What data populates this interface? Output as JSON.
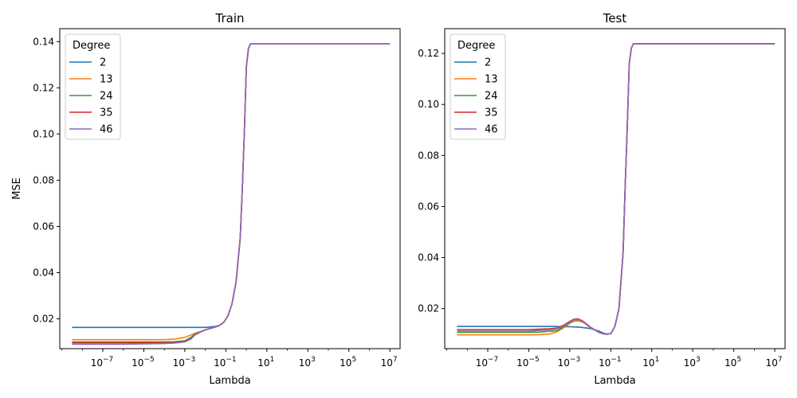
{
  "chart_data": [
    {
      "type": "line",
      "title": "Train",
      "xlabel": "Lambda",
      "ylabel": "MSE",
      "xscale": "log",
      "xlim_log10": [
        -9.1,
        7.5
      ],
      "ylim": [
        0.0071,
        0.1456
      ],
      "xtick_exponents": [
        -7,
        -5,
        -3,
        -1,
        1,
        3,
        5,
        7
      ],
      "yticks": [
        "0.02",
        "0.04",
        "0.06",
        "0.08",
        "0.10",
        "0.12",
        "0.14"
      ],
      "grid": false,
      "legend": {
        "title": "Degree",
        "placement": "top-left"
      },
      "series": [
        {
          "name": "2",
          "color": "#1f77b4",
          "points": [
            [
              -8.5,
              0.0163
            ],
            [
              -4,
              0.0163
            ],
            [
              -2.5,
              0.0163
            ],
            [
              -2,
              0.0163
            ],
            [
              -1.5,
              0.0167
            ],
            [
              -1.3,
              0.0172
            ],
            [
              -1.1,
              0.0185
            ],
            [
              -0.9,
              0.0212
            ],
            [
              -0.7,
              0.0265
            ],
            [
              -0.5,
              0.036
            ],
            [
              -0.3,
              0.055
            ],
            [
              -0.2,
              0.075
            ],
            [
              -0.1,
              0.1
            ],
            [
              0,
              0.129
            ],
            [
              0.1,
              0.137
            ],
            [
              0.2,
              0.139
            ],
            [
              7,
              0.139
            ]
          ]
        },
        {
          "name": "13",
          "color": "#ff7f0e",
          "points": [
            [
              -8.5,
              0.011
            ],
            [
              -4,
              0.011
            ],
            [
              -3.5,
              0.0112
            ],
            [
              -3,
              0.012
            ],
            [
              -2.7,
              0.013
            ],
            [
              -2.5,
              0.0138
            ],
            [
              -2.2,
              0.0146
            ],
            [
              -2,
              0.0153
            ],
            [
              -1.5,
              0.0165
            ],
            [
              -1.3,
              0.0172
            ],
            [
              -1.1,
              0.0185
            ],
            [
              -0.9,
              0.0212
            ],
            [
              -0.7,
              0.0265
            ],
            [
              -0.5,
              0.036
            ],
            [
              -0.3,
              0.055
            ],
            [
              -0.2,
              0.075
            ],
            [
              -0.1,
              0.1
            ],
            [
              0,
              0.129
            ],
            [
              0.1,
              0.137
            ],
            [
              0.2,
              0.139
            ],
            [
              7,
              0.139
            ]
          ]
        },
        {
          "name": "24",
          "color": "#2ca02c",
          "points": [
            [
              -8.5,
              0.01
            ],
            [
              -4,
              0.01
            ],
            [
              -3.5,
              0.0101
            ],
            [
              -3,
              0.0105
            ],
            [
              -2.7,
              0.012
            ],
            [
              -2.5,
              0.0135
            ],
            [
              -2.2,
              0.0145
            ],
            [
              -2,
              0.0152
            ],
            [
              -1.5,
              0.0165
            ],
            [
              -1.3,
              0.0172
            ],
            [
              -1.1,
              0.0185
            ],
            [
              -0.9,
              0.0212
            ],
            [
              -0.7,
              0.0265
            ],
            [
              -0.5,
              0.036
            ],
            [
              -0.3,
              0.055
            ],
            [
              -0.2,
              0.075
            ],
            [
              -0.1,
              0.1
            ],
            [
              0,
              0.129
            ],
            [
              0.1,
              0.137
            ],
            [
              0.2,
              0.139
            ],
            [
              7,
              0.139
            ]
          ]
        },
        {
          "name": "35",
          "color": "#d62728",
          "points": [
            [
              -8.5,
              0.0096
            ],
            [
              -6,
              0.0096
            ],
            [
              -4,
              0.0097
            ],
            [
              -3.5,
              0.0098
            ],
            [
              -3,
              0.0102
            ],
            [
              -2.7,
              0.0115
            ],
            [
              -2.5,
              0.0132
            ],
            [
              -2.2,
              0.0144
            ],
            [
              -2,
              0.0152
            ],
            [
              -1.5,
              0.0165
            ],
            [
              -1.3,
              0.0172
            ],
            [
              -1.1,
              0.0185
            ],
            [
              -0.9,
              0.0212
            ],
            [
              -0.7,
              0.0265
            ],
            [
              -0.5,
              0.036
            ],
            [
              -0.3,
              0.055
            ],
            [
              -0.2,
              0.075
            ],
            [
              -0.1,
              0.1
            ],
            [
              0,
              0.129
            ],
            [
              0.1,
              0.137
            ],
            [
              0.2,
              0.139
            ],
            [
              7,
              0.139
            ]
          ]
        },
        {
          "name": "46",
          "color": "#9467bd",
          "points": [
            [
              -8.5,
              0.009
            ],
            [
              -6,
              0.009
            ],
            [
              -4,
              0.0093
            ],
            [
              -3.5,
              0.0095
            ],
            [
              -3,
              0.01
            ],
            [
              -2.7,
              0.0113
            ],
            [
              -2.5,
              0.0131
            ],
            [
              -2.2,
              0.0144
            ],
            [
              -2,
              0.0152
            ],
            [
              -1.5,
              0.0165
            ],
            [
              -1.3,
              0.0172
            ],
            [
              -1.1,
              0.0185
            ],
            [
              -0.9,
              0.0212
            ],
            [
              -0.7,
              0.0265
            ],
            [
              -0.5,
              0.036
            ],
            [
              -0.3,
              0.055
            ],
            [
              -0.2,
              0.075
            ],
            [
              -0.1,
              0.1
            ],
            [
              0,
              0.129
            ],
            [
              0.1,
              0.137
            ],
            [
              0.2,
              0.139
            ],
            [
              7,
              0.139
            ]
          ]
        }
      ]
    },
    {
      "type": "line",
      "title": "Test",
      "xlabel": "Lambda",
      "ylabel": "",
      "xscale": "log",
      "xlim_log10": [
        -9.1,
        7.5
      ],
      "ylim": [
        0.0043,
        0.1297
      ],
      "xtick_exponents": [
        -7,
        -5,
        -3,
        -1,
        1,
        3,
        5,
        7
      ],
      "yticks": [
        "0.02",
        "0.04",
        "0.06",
        "0.08",
        "0.10",
        "0.12"
      ],
      "grid": false,
      "legend": {
        "title": "Degree",
        "placement": "top-left"
      },
      "series": [
        {
          "name": "2",
          "color": "#1f77b4",
          "points": [
            [
              -8.5,
              0.013
            ],
            [
              -4,
              0.013
            ],
            [
              -3,
              0.0129
            ],
            [
              -2.5,
              0.0127
            ],
            [
              -2,
              0.0122
            ],
            [
              -1.6,
              0.0113
            ],
            [
              -1.4,
              0.0105
            ],
            [
              -1.2,
              0.01
            ],
            [
              -1,
              0.0102
            ],
            [
              -0.8,
              0.013
            ],
            [
              -0.6,
              0.02
            ],
            [
              -0.4,
              0.042
            ],
            [
              -0.3,
              0.068
            ],
            [
              -0.2,
              0.09
            ],
            [
              -0.1,
              0.116
            ],
            [
              0,
              0.122
            ],
            [
              0.1,
              0.1238
            ],
            [
              7,
              0.1238
            ]
          ]
        },
        {
          "name": "13",
          "color": "#ff7f0e",
          "points": [
            [
              -8.5,
              0.0097
            ],
            [
              -5,
              0.0097
            ],
            [
              -4.5,
              0.0098
            ],
            [
              -4,
              0.01
            ],
            [
              -3.6,
              0.011
            ],
            [
              -3.3,
              0.0125
            ],
            [
              -3,
              0.0142
            ],
            [
              -2.8,
              0.015
            ],
            [
              -2.6,
              0.0152
            ],
            [
              -2.4,
              0.0148
            ],
            [
              -2.2,
              0.0138
            ],
            [
              -2,
              0.0125
            ],
            [
              -1.6,
              0.0108
            ],
            [
              -1.4,
              0.0102
            ],
            [
              -1.2,
              0.0099
            ],
            [
              -1,
              0.0102
            ],
            [
              -0.8,
              0.013
            ],
            [
              -0.6,
              0.02
            ],
            [
              -0.4,
              0.042
            ],
            [
              -0.3,
              0.068
            ],
            [
              -0.2,
              0.09
            ],
            [
              -0.1,
              0.116
            ],
            [
              0,
              0.122
            ],
            [
              0.1,
              0.1238
            ],
            [
              7,
              0.1238
            ]
          ]
        },
        {
          "name": "24",
          "color": "#2ca02c",
          "points": [
            [
              -8.5,
              0.0107
            ],
            [
              -5,
              0.0107
            ],
            [
              -4.5,
              0.0108
            ],
            [
              -4,
              0.0111
            ],
            [
              -3.6,
              0.0114
            ],
            [
              -3.3,
              0.0128
            ],
            [
              -3,
              0.0146
            ],
            [
              -2.8,
              0.0155
            ],
            [
              -2.6,
              0.0157
            ],
            [
              -2.4,
              0.0151
            ],
            [
              -2.2,
              0.014
            ],
            [
              -2,
              0.0127
            ],
            [
              -1.6,
              0.0108
            ],
            [
              -1.4,
              0.0102
            ],
            [
              -1.2,
              0.0099
            ],
            [
              -1,
              0.0102
            ],
            [
              -0.8,
              0.013
            ],
            [
              -0.6,
              0.02
            ],
            [
              -0.4,
              0.042
            ],
            [
              -0.3,
              0.068
            ],
            [
              -0.2,
              0.09
            ],
            [
              -0.1,
              0.116
            ],
            [
              0,
              0.122
            ],
            [
              0.1,
              0.1238
            ],
            [
              7,
              0.1238
            ]
          ]
        },
        {
          "name": "35",
          "color": "#d62728",
          "points": [
            [
              -8.5,
              0.0118
            ],
            [
              -5,
              0.0118
            ],
            [
              -4.5,
              0.0119
            ],
            [
              -4,
              0.0121
            ],
            [
              -3.6,
              0.0124
            ],
            [
              -3.3,
              0.0135
            ],
            [
              -3,
              0.015
            ],
            [
              -2.8,
              0.0158
            ],
            [
              -2.6,
              0.016
            ],
            [
              -2.4,
              0.0153
            ],
            [
              -2.2,
              0.0141
            ],
            [
              -2,
              0.0128
            ],
            [
              -1.6,
              0.0108
            ],
            [
              -1.4,
              0.0102
            ],
            [
              -1.2,
              0.0099
            ],
            [
              -1,
              0.0102
            ],
            [
              -0.8,
              0.013
            ],
            [
              -0.6,
              0.02
            ],
            [
              -0.4,
              0.042
            ],
            [
              -0.3,
              0.068
            ],
            [
              -0.2,
              0.09
            ],
            [
              -0.1,
              0.116
            ],
            [
              0,
              0.122
            ],
            [
              0.1,
              0.1238
            ],
            [
              7,
              0.1238
            ]
          ]
        },
        {
          "name": "46",
          "color": "#9467bd",
          "points": [
            [
              -8.5,
              0.0112
            ],
            [
              -5,
              0.0112
            ],
            [
              -4.5,
              0.0114
            ],
            [
              -4,
              0.0117
            ],
            [
              -3.6,
              0.0121
            ],
            [
              -3.3,
              0.0132
            ],
            [
              -3,
              0.0148
            ],
            [
              -2.8,
              0.0156
            ],
            [
              -2.6,
              0.0158
            ],
            [
              -2.4,
              0.0152
            ],
            [
              -2.2,
              0.014
            ],
            [
              -2,
              0.0127
            ],
            [
              -1.6,
              0.0108
            ],
            [
              -1.4,
              0.0102
            ],
            [
              -1.2,
              0.0099
            ],
            [
              -1,
              0.0102
            ],
            [
              -0.8,
              0.013
            ],
            [
              -0.6,
              0.02
            ],
            [
              -0.4,
              0.042
            ],
            [
              -0.3,
              0.068
            ],
            [
              -0.2,
              0.09
            ],
            [
              -0.1,
              0.116
            ],
            [
              0,
              0.122
            ],
            [
              0.1,
              0.1238
            ],
            [
              7,
              0.1238
            ]
          ]
        }
      ]
    }
  ]
}
